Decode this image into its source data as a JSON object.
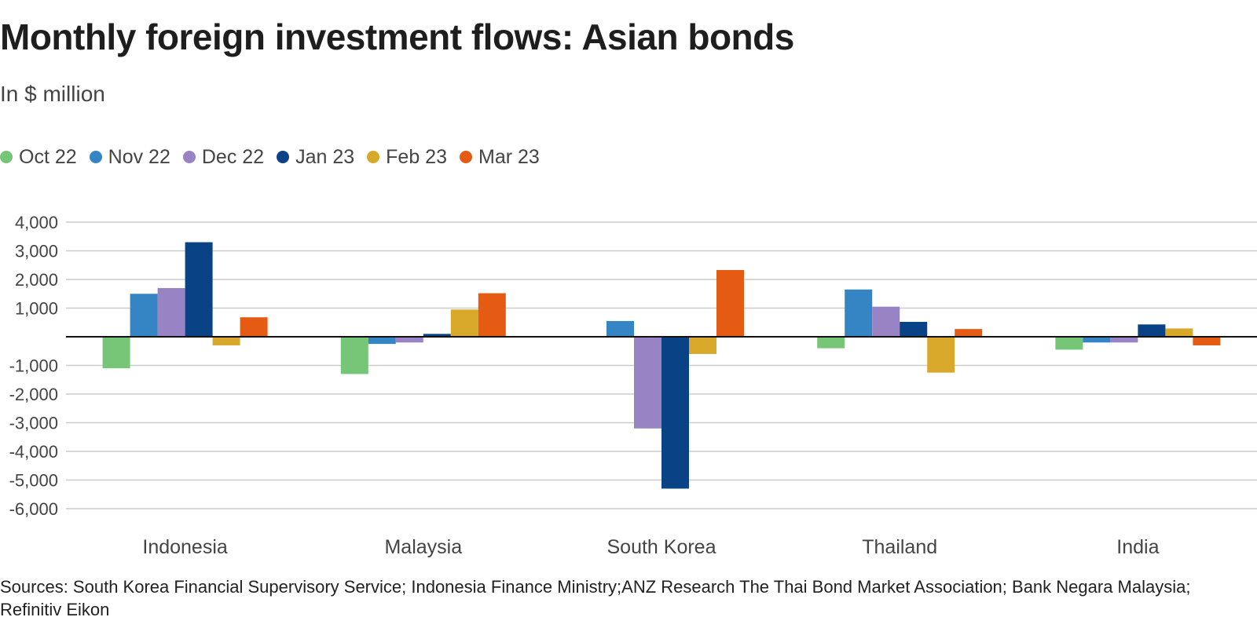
{
  "chart_data": {
    "type": "bar",
    "title": "Monthly foreign investment flows: Asian bonds",
    "subtitle": "In $ million",
    "categories": [
      "Indonesia",
      "Malaysia",
      "South Korea",
      "Thailand",
      "India"
    ],
    "series": [
      {
        "name": "Oct 22",
        "color": "#77c577",
        "values": [
          -1100,
          -1300,
          0,
          -400,
          -450
        ]
      },
      {
        "name": "Nov 22",
        "color": "#3585c4",
        "values": [
          1500,
          -250,
          550,
          1650,
          -200
        ]
      },
      {
        "name": "Dec 22",
        "color": "#9883c5",
        "values": [
          1700,
          -200,
          -3200,
          1050,
          -200
        ]
      },
      {
        "name": "Jan 23",
        "color": "#0a4286",
        "values": [
          3300,
          100,
          -5300,
          520,
          430
        ]
      },
      {
        "name": "Feb 23",
        "color": "#d7a82a",
        "values": [
          -300,
          950,
          -600,
          -1250,
          290
        ]
      },
      {
        "name": "Mar 23",
        "color": "#e65b14",
        "values": [
          680,
          1520,
          2330,
          270,
          -300
        ]
      }
    ],
    "y_ticks": [
      4000,
      3000,
      2000,
      1000,
      0,
      -1000,
      -2000,
      -3000,
      -4000,
      -5000,
      -6000
    ],
    "y_tick_labels": [
      "4,000",
      "3,000",
      "2,000",
      "1,000",
      "",
      "-1,000",
      "-2,000",
      "-3,000",
      "-4,000",
      "-5,000",
      "-6,000"
    ],
    "ylim": [
      -6000,
      4000
    ],
    "xlabel": "",
    "ylabel": "",
    "grid": true,
    "legend": "top-left",
    "source": "Sources: South Korea Financial Supervisory Service; Indonesia Finance Ministry;ANZ Research The Thai Bond Market Association; Bank Negara Malaysia; Refinitiv Eikon"
  }
}
